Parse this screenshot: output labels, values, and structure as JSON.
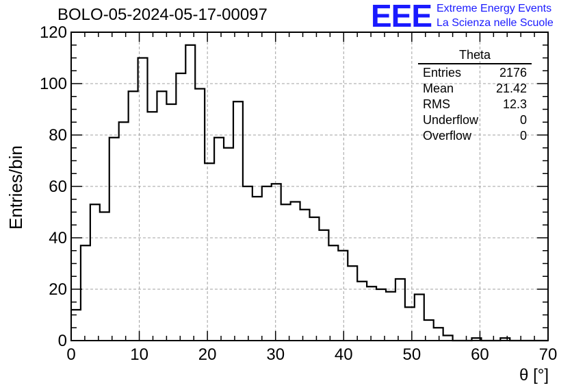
{
  "header": {
    "title": "BOLO-05-2024-05-17-00097",
    "logo_text": "EEE",
    "logo_line1": "Extreme Energy Events",
    "logo_line2": "La Scienza nelle Scuole",
    "logo_color": "#1a1aff"
  },
  "stats_box": {
    "title": "Theta",
    "rows": [
      {
        "label": "Entries",
        "value": "2176"
      },
      {
        "label": "Mean",
        "value": "21.42"
      },
      {
        "label": "RMS",
        "value": "12.3"
      },
      {
        "label": "Underflow",
        "value": "0"
      },
      {
        "label": "Overflow",
        "value": "0"
      }
    ]
  },
  "chart_data": {
    "type": "histogram",
    "title": "BOLO-05-2024-05-17-00097",
    "xlabel": "θ [°]",
    "ylabel": "Entries/bin",
    "xlim": [
      0,
      70
    ],
    "ylim": [
      0,
      120
    ],
    "bin_width": 1.4,
    "grid": true,
    "x_ticks": [
      "0",
      "10",
      "20",
      "30",
      "40",
      "50",
      "60",
      "70"
    ],
    "y_ticks": [
      "0",
      "20",
      "40",
      "60",
      "80",
      "100",
      "120"
    ],
    "series": [
      {
        "values": [
          12,
          37,
          53,
          50,
          79,
          85,
          97,
          110,
          89,
          97,
          92,
          104,
          115,
          98,
          69,
          79,
          75,
          93,
          60,
          56,
          60,
          61,
          53,
          54,
          51,
          48,
          43,
          37,
          35,
          29,
          23,
          21,
          20,
          19,
          24,
          13,
          18,
          8,
          5,
          2,
          0,
          0,
          1,
          0,
          0,
          1,
          0,
          0,
          0,
          0
        ]
      }
    ]
  }
}
